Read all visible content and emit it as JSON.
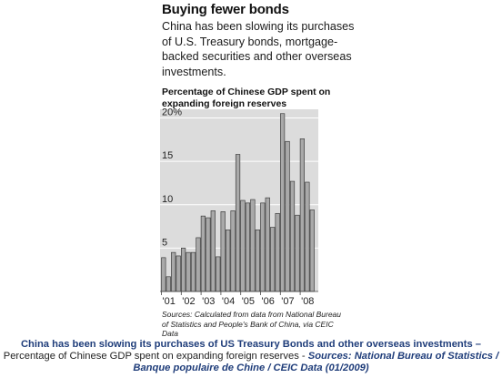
{
  "header": {
    "title": "Buying fewer bonds",
    "subtitle": "China has been slowing its purchases of U.S. Treasury bonds, mortgage-backed securities and other overseas investments."
  },
  "chart_label": "Percentage of Chinese GDP spent on expanding foreign reserves",
  "source_note": "Sources: Calculated from data from National Bureau of Statistics and People's Bank of China, via CEIC Data",
  "caption": {
    "line1": "China has been slowing its purchases of US Treasury Bonds and other overseas investments –",
    "line2_plain": "Percentage of Chinese GDP spent on expanding foreign reserves - ",
    "line2_source": "Sources: National Bureau of Statistics /",
    "line3_source": "Banque populaire de Chine / CEIC Data (01/2009)"
  },
  "chart_data": {
    "type": "bar",
    "title": "Percentage of Chinese GDP spent on expanding foreign reserves",
    "xlabel": "",
    "ylabel": "",
    "ylim": [
      0,
      21
    ],
    "yticks": [
      5,
      10,
      15,
      20
    ],
    "ytick_labels": [
      "5",
      "10",
      "15",
      "20%"
    ],
    "grid": "horizontal",
    "bar_color": "#b3b3b3",
    "x_tick_labels": [
      "'01",
      "'02",
      "'03",
      "'04",
      "'05",
      "'06",
      "'07",
      "'08"
    ],
    "values_by_year": [
      {
        "year": "'01",
        "values": [
          3.9,
          1.7,
          4.5,
          4.1
        ]
      },
      {
        "year": "'02",
        "values": [
          5.0,
          4.5,
          4.5,
          6.2
        ]
      },
      {
        "year": "'03",
        "values": [
          8.7,
          8.5,
          9.3,
          4.0
        ]
      },
      {
        "year": "'04",
        "values": [
          9.2,
          7.1,
          9.3,
          15.8
        ]
      },
      {
        "year": "'05",
        "values": [
          10.5,
          10.2,
          10.6,
          7.1
        ]
      },
      {
        "year": "'06",
        "values": [
          10.2,
          10.8,
          7.4,
          9.0
        ]
      },
      {
        "year": "'07",
        "values": [
          20.5,
          17.3,
          12.7,
          8.8
        ]
      },
      {
        "year": "'08",
        "values": [
          17.6,
          12.6,
          9.4
        ]
      }
    ]
  }
}
